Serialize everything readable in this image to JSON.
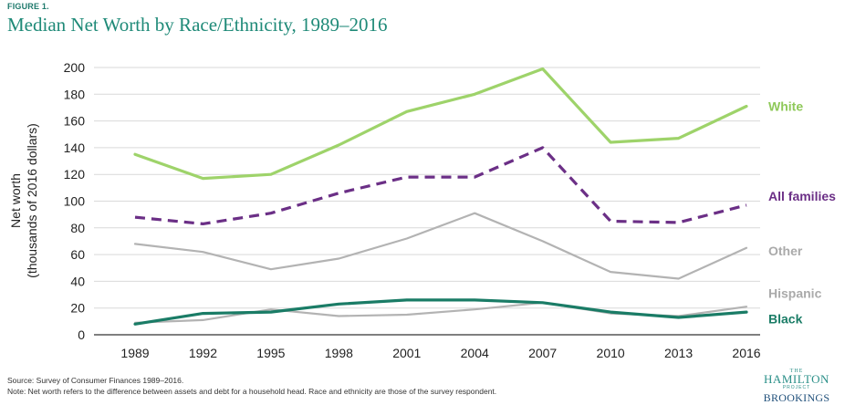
{
  "figure_label": "FIGURE 1.",
  "title": "Median Net Worth by Race/Ethnicity, 1989–2016",
  "source": "Source: Survey of Consumer Finances 1989–2016.",
  "note": "Note: Net worth refers to the difference between assets and debt for a household head. Race and ethnicity are those of the survey respondent.",
  "logo": {
    "the": "THE",
    "hamilton": "HAMILTON",
    "project": "PROJECT",
    "brookings": "BROOKINGS"
  },
  "chart_data": {
    "type": "line",
    "title": "Median Net Worth by Race/Ethnicity, 1989–2016",
    "xlabel": "",
    "ylabel_line1": "Net worth",
    "ylabel_line2": "(thousands of 2016 dollars)",
    "ylim": [
      0,
      200
    ],
    "yticks": [
      0,
      20,
      40,
      60,
      80,
      100,
      120,
      140,
      160,
      180,
      200
    ],
    "categories": [
      "1989",
      "1992",
      "1995",
      "1998",
      "2001",
      "2004",
      "2007",
      "2010",
      "2013",
      "2016"
    ],
    "grid": "horizontal",
    "series": [
      {
        "name": "White",
        "color": "#9ed36a",
        "dash": "solid",
        "width": "thick",
        "values": [
          135,
          117,
          120,
          142,
          167,
          180,
          199,
          144,
          147,
          171
        ]
      },
      {
        "name": "All families",
        "color": "#6b2f86",
        "dash": "dashed",
        "width": "thick",
        "values": [
          88,
          83,
          91,
          106,
          118,
          118,
          140,
          85,
          84,
          97
        ]
      },
      {
        "name": "Other",
        "color": "#b3b3b3",
        "dash": "solid",
        "width": "thin",
        "values": [
          68,
          62,
          49,
          57,
          72,
          91,
          70,
          47,
          42,
          65
        ]
      },
      {
        "name": "Hispanic",
        "color": "#b3b3b3",
        "dash": "solid",
        "width": "thin",
        "values": [
          9,
          11,
          19,
          14,
          15,
          19,
          24,
          16,
          14,
          21
        ]
      },
      {
        "name": "Black",
        "color": "#1a7c66",
        "dash": "solid",
        "width": "thick",
        "values": [
          8,
          16,
          17,
          23,
          26,
          26,
          24,
          17,
          13,
          17
        ]
      }
    ]
  }
}
